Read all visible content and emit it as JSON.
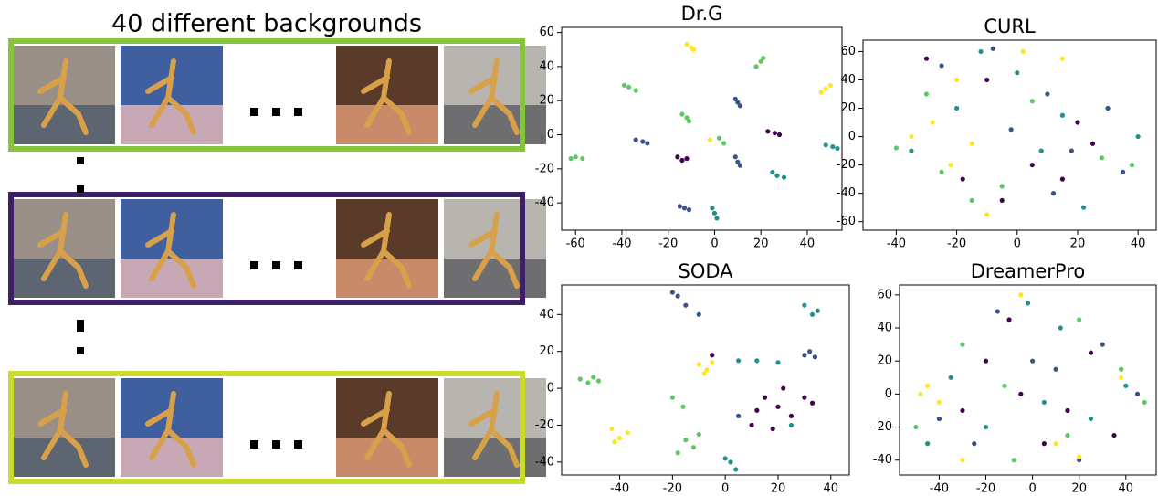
{
  "left_panel": {
    "title": "40 different backgrounds"
  },
  "chart_data": [
    {
      "type": "scatter",
      "title": "Dr.G",
      "xlim": [
        -66,
        55
      ],
      "ylim": [
        -56,
        63
      ],
      "xticks": [
        -60,
        -40,
        -20,
        0,
        20,
        40
      ],
      "yticks": [
        -40,
        -20,
        0,
        20,
        40,
        60
      ],
      "series": [
        {
          "color": "#440154",
          "x": [
            23,
            26,
            28,
            -16,
            -14,
            -12
          ],
          "y": [
            2,
            1,
            0,
            -13,
            -15,
            -14
          ]
        },
        {
          "color": "#3b528b",
          "x": [
            9,
            10,
            11,
            -34,
            -31,
            -29,
            9,
            10,
            11,
            -15,
            -13,
            -11
          ],
          "y": [
            21,
            19,
            17,
            -3,
            -4,
            -5,
            -13,
            -16,
            -18,
            -42,
            -43,
            -44
          ]
        },
        {
          "color": "#21918c",
          "x": [
            48,
            51,
            53,
            25,
            27,
            30,
            -1,
            0,
            1
          ],
          "y": [
            -6,
            -7,
            -8,
            -22,
            -24,
            -25,
            -43,
            -46,
            -49
          ]
        },
        {
          "color": "#5ec962",
          "x": [
            18,
            20,
            21,
            -39,
            -37,
            -34,
            -14,
            -12,
            -11,
            -62,
            -60,
            -57,
            2,
            4
          ],
          "y": [
            40,
            43,
            45,
            29,
            28,
            26,
            12,
            10,
            8,
            -14,
            -13,
            -14,
            -2,
            -5
          ]
        },
        {
          "color": "#fde725",
          "x": [
            -12,
            -10,
            -9,
            46,
            48,
            50,
            -2
          ],
          "y": [
            53,
            51,
            50,
            25,
            27,
            29,
            -3
          ]
        }
      ]
    },
    {
      "type": "scatter",
      "title": "CURL",
      "xlim": [
        -51,
        46
      ],
      "ylim": [
        -66,
        68
      ],
      "xticks": [
        -40,
        -20,
        0,
        20,
        40
      ],
      "yticks": [
        -60,
        -40,
        -20,
        0,
        20,
        40,
        60
      ],
      "series": [
        {
          "color": "#440154",
          "x": [
            -30,
            -10,
            5,
            15,
            -5,
            20,
            25,
            -18
          ],
          "y": [
            55,
            40,
            -20,
            -30,
            -45,
            10,
            -5,
            -30
          ]
        },
        {
          "color": "#3b528b",
          "x": [
            -8,
            10,
            18,
            30,
            -2,
            12,
            -25,
            35
          ],
          "y": [
            62,
            30,
            -10,
            20,
            5,
            -40,
            50,
            -25
          ]
        },
        {
          "color": "#21918c",
          "x": [
            -12,
            0,
            -20,
            8,
            22,
            -35,
            40,
            15
          ],
          "y": [
            60,
            45,
            20,
            -10,
            -50,
            -10,
            0,
            15
          ]
        },
        {
          "color": "#5ec962",
          "x": [
            -40,
            -25,
            -15,
            28,
            5,
            -30,
            38,
            -5
          ],
          "y": [
            -8,
            -25,
            -45,
            -15,
            25,
            30,
            -20,
            -35
          ]
        },
        {
          "color": "#fde725",
          "x": [
            -20,
            -15,
            -10,
            -35,
            15,
            -22,
            2,
            -28
          ],
          "y": [
            40,
            -5,
            -55,
            0,
            55,
            -20,
            60,
            10
          ]
        }
      ]
    },
    {
      "type": "scatter",
      "title": "SODA",
      "xlim": [
        -62,
        47
      ],
      "ylim": [
        -47,
        56
      ],
      "xticks": [
        -40,
        -20,
        0,
        20,
        40
      ],
      "yticks": [
        -40,
        -20,
        0,
        20,
        40
      ],
      "series": [
        {
          "color": "#440154",
          "x": [
            15,
            20,
            25,
            30,
            10,
            22,
            33,
            18,
            -5,
            12
          ],
          "y": [
            -5,
            -10,
            -15,
            -5,
            -20,
            0,
            -8,
            -22,
            18,
            -12
          ]
        },
        {
          "color": "#3b528b",
          "x": [
            -20,
            -15,
            -10,
            -18,
            32,
            34,
            30,
            5
          ],
          "y": [
            52,
            45,
            40,
            50,
            20,
            17,
            18,
            -15
          ]
        },
        {
          "color": "#21918c",
          "x": [
            30,
            33,
            35,
            5,
            12,
            20,
            2,
            4,
            0,
            25
          ],
          "y": [
            45,
            40,
            42,
            15,
            15,
            14,
            -40,
            -44,
            -38,
            -20
          ]
        },
        {
          "color": "#5ec962",
          "x": [
            -55,
            -52,
            -50,
            -48,
            -15,
            -12,
            -18,
            -10,
            -20,
            -16
          ],
          "y": [
            5,
            3,
            6,
            4,
            -28,
            -32,
            -35,
            -25,
            -5,
            -10
          ]
        },
        {
          "color": "#fde725",
          "x": [
            -43,
            -40,
            -37,
            -42,
            -10,
            -7,
            -5,
            -8
          ],
          "y": [
            -22,
            -27,
            -24,
            -29,
            13,
            10,
            14,
            8
          ]
        }
      ]
    },
    {
      "type": "scatter",
      "title": "DreamerPro",
      "xlim": [
        -57,
        53
      ],
      "ylim": [
        -49,
        66
      ],
      "xticks": [
        -40,
        -20,
        0,
        20,
        40
      ],
      "yticks": [
        -40,
        -20,
        0,
        20,
        40,
        60
      ],
      "series": [
        {
          "color": "#440154",
          "x": [
            -20,
            -10,
            5,
            15,
            -30,
            25,
            -5,
            35
          ],
          "y": [
            20,
            45,
            -30,
            -10,
            -10,
            25,
            0,
            -25
          ]
        },
        {
          "color": "#3b528b",
          "x": [
            -15,
            0,
            10,
            30,
            -25,
            20,
            45,
            -40
          ],
          "y": [
            50,
            20,
            15,
            30,
            -30,
            -40,
            0,
            -15
          ]
        },
        {
          "color": "#21918c",
          "x": [
            -2,
            12,
            -35,
            5,
            40,
            -20,
            25,
            -45
          ],
          "y": [
            55,
            40,
            10,
            -5,
            5,
            -20,
            -15,
            -30
          ]
        },
        {
          "color": "#5ec962",
          "x": [
            -50,
            -30,
            15,
            38,
            -8,
            20,
            -12,
            48
          ],
          "y": [
            -20,
            30,
            -25,
            15,
            -40,
            45,
            5,
            -5
          ]
        },
        {
          "color": "#fde725",
          "x": [
            -45,
            -40,
            -5,
            10,
            38,
            -30,
            20,
            -48
          ],
          "y": [
            5,
            -5,
            60,
            -30,
            10,
            -40,
            -38,
            0
          ]
        }
      ]
    }
  ]
}
